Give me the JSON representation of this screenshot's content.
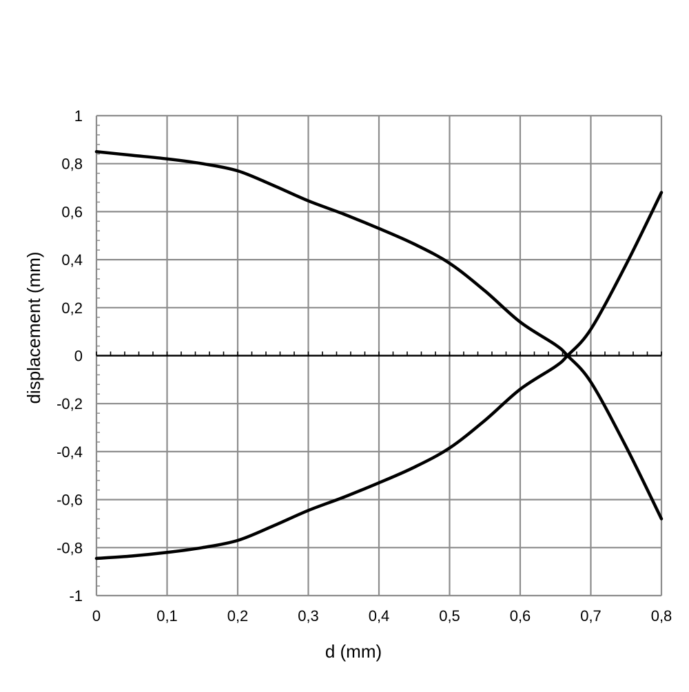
{
  "chart_data": {
    "type": "line",
    "title": "",
    "xlabel": "d (mm)",
    "ylabel": "displacement (mm)",
    "xlim": [
      0,
      0.8
    ],
    "ylim": [
      -1,
      1
    ],
    "grid": true,
    "legend": "none",
    "x_ticks": [
      0,
      0.1,
      0.2,
      0.3,
      0.4,
      0.5,
      0.6,
      0.7,
      0.8
    ],
    "x_tick_labels": [
      "0",
      "0,1",
      "0,2",
      "0,3",
      "0,4",
      "0,5",
      "0,6",
      "0,7",
      "0,8"
    ],
    "y_ticks": [
      1,
      0.8,
      0.6,
      0.4,
      0.2,
      0,
      -0.2,
      -0.4,
      -0.6,
      -0.8,
      -1
    ],
    "y_tick_labels": [
      "1",
      "0,8",
      "0,6",
      "0,4",
      "0,2",
      "0",
      "-0,2",
      "-0,4",
      "-0,6",
      "-0,8",
      "-1"
    ],
    "series": [
      {
        "x": [
          0,
          0.05,
          0.1,
          0.15,
          0.2,
          0.25,
          0.3,
          0.35,
          0.4,
          0.45,
          0.5,
          0.55,
          0.6,
          0.65,
          0.667,
          0.7,
          0.75,
          0.8
        ],
        "values": [
          0.85,
          0.835,
          0.82,
          0.8,
          0.77,
          0.71,
          0.645,
          0.59,
          0.53,
          0.465,
          0.385,
          0.27,
          0.14,
          0.045,
          0.0,
          -0.11,
          -0.38,
          -0.68
        ]
      },
      {
        "x": [
          0,
          0.05,
          0.1,
          0.15,
          0.2,
          0.25,
          0.3,
          0.35,
          0.4,
          0.45,
          0.5,
          0.55,
          0.6,
          0.65,
          0.667,
          0.7,
          0.75,
          0.8
        ],
        "values": [
          -0.845,
          -0.835,
          -0.82,
          -0.8,
          -0.77,
          -0.71,
          -0.645,
          -0.59,
          -0.53,
          -0.465,
          -0.385,
          -0.27,
          -0.14,
          -0.045,
          0.0,
          0.11,
          0.38,
          0.68
        ]
      }
    ],
    "colors": {
      "line": "#000000",
      "grid": "#8c8c8c",
      "zero_axis": "#000000"
    }
  }
}
